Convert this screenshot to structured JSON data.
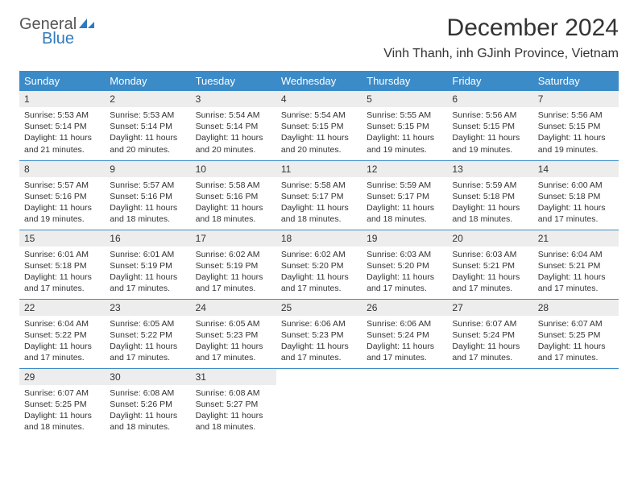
{
  "colors": {
    "header_bg": "#3b8bc8",
    "header_text": "#ffffff",
    "daynum_bg": "#ededed",
    "row_border": "#3b8bc8",
    "logo_gray": "#555555",
    "logo_blue": "#2f7bbf",
    "body_text": "#333333",
    "page_bg": "#ffffff"
  },
  "typography": {
    "title_fontsize": 30,
    "location_fontsize": 16,
    "weekday_fontsize": 13,
    "daynum_fontsize": 12,
    "cell_fontsize": 10.5
  },
  "logo": {
    "top": "General",
    "bottom": "Blue"
  },
  "title": "December 2024",
  "location": "Vinh Thanh, inh GJinh Province, Vietnam",
  "weekdays": [
    "Sunday",
    "Monday",
    "Tuesday",
    "Wednesday",
    "Thursday",
    "Friday",
    "Saturday"
  ],
  "weeks": [
    [
      {
        "num": "1",
        "sunrise": "Sunrise: 5:53 AM",
        "sunset": "Sunset: 5:14 PM",
        "day1": "Daylight: 11 hours",
        "day2": "and 21 minutes."
      },
      {
        "num": "2",
        "sunrise": "Sunrise: 5:53 AM",
        "sunset": "Sunset: 5:14 PM",
        "day1": "Daylight: 11 hours",
        "day2": "and 20 minutes."
      },
      {
        "num": "3",
        "sunrise": "Sunrise: 5:54 AM",
        "sunset": "Sunset: 5:14 PM",
        "day1": "Daylight: 11 hours",
        "day2": "and 20 minutes."
      },
      {
        "num": "4",
        "sunrise": "Sunrise: 5:54 AM",
        "sunset": "Sunset: 5:15 PM",
        "day1": "Daylight: 11 hours",
        "day2": "and 20 minutes."
      },
      {
        "num": "5",
        "sunrise": "Sunrise: 5:55 AM",
        "sunset": "Sunset: 5:15 PM",
        "day1": "Daylight: 11 hours",
        "day2": "and 19 minutes."
      },
      {
        "num": "6",
        "sunrise": "Sunrise: 5:56 AM",
        "sunset": "Sunset: 5:15 PM",
        "day1": "Daylight: 11 hours",
        "day2": "and 19 minutes."
      },
      {
        "num": "7",
        "sunrise": "Sunrise: 5:56 AM",
        "sunset": "Sunset: 5:15 PM",
        "day1": "Daylight: 11 hours",
        "day2": "and 19 minutes."
      }
    ],
    [
      {
        "num": "8",
        "sunrise": "Sunrise: 5:57 AM",
        "sunset": "Sunset: 5:16 PM",
        "day1": "Daylight: 11 hours",
        "day2": "and 19 minutes."
      },
      {
        "num": "9",
        "sunrise": "Sunrise: 5:57 AM",
        "sunset": "Sunset: 5:16 PM",
        "day1": "Daylight: 11 hours",
        "day2": "and 18 minutes."
      },
      {
        "num": "10",
        "sunrise": "Sunrise: 5:58 AM",
        "sunset": "Sunset: 5:16 PM",
        "day1": "Daylight: 11 hours",
        "day2": "and 18 minutes."
      },
      {
        "num": "11",
        "sunrise": "Sunrise: 5:58 AM",
        "sunset": "Sunset: 5:17 PM",
        "day1": "Daylight: 11 hours",
        "day2": "and 18 minutes."
      },
      {
        "num": "12",
        "sunrise": "Sunrise: 5:59 AM",
        "sunset": "Sunset: 5:17 PM",
        "day1": "Daylight: 11 hours",
        "day2": "and 18 minutes."
      },
      {
        "num": "13",
        "sunrise": "Sunrise: 5:59 AM",
        "sunset": "Sunset: 5:18 PM",
        "day1": "Daylight: 11 hours",
        "day2": "and 18 minutes."
      },
      {
        "num": "14",
        "sunrise": "Sunrise: 6:00 AM",
        "sunset": "Sunset: 5:18 PM",
        "day1": "Daylight: 11 hours",
        "day2": "and 17 minutes."
      }
    ],
    [
      {
        "num": "15",
        "sunrise": "Sunrise: 6:01 AM",
        "sunset": "Sunset: 5:18 PM",
        "day1": "Daylight: 11 hours",
        "day2": "and 17 minutes."
      },
      {
        "num": "16",
        "sunrise": "Sunrise: 6:01 AM",
        "sunset": "Sunset: 5:19 PM",
        "day1": "Daylight: 11 hours",
        "day2": "and 17 minutes."
      },
      {
        "num": "17",
        "sunrise": "Sunrise: 6:02 AM",
        "sunset": "Sunset: 5:19 PM",
        "day1": "Daylight: 11 hours",
        "day2": "and 17 minutes."
      },
      {
        "num": "18",
        "sunrise": "Sunrise: 6:02 AM",
        "sunset": "Sunset: 5:20 PM",
        "day1": "Daylight: 11 hours",
        "day2": "and 17 minutes."
      },
      {
        "num": "19",
        "sunrise": "Sunrise: 6:03 AM",
        "sunset": "Sunset: 5:20 PM",
        "day1": "Daylight: 11 hours",
        "day2": "and 17 minutes."
      },
      {
        "num": "20",
        "sunrise": "Sunrise: 6:03 AM",
        "sunset": "Sunset: 5:21 PM",
        "day1": "Daylight: 11 hours",
        "day2": "and 17 minutes."
      },
      {
        "num": "21",
        "sunrise": "Sunrise: 6:04 AM",
        "sunset": "Sunset: 5:21 PM",
        "day1": "Daylight: 11 hours",
        "day2": "and 17 minutes."
      }
    ],
    [
      {
        "num": "22",
        "sunrise": "Sunrise: 6:04 AM",
        "sunset": "Sunset: 5:22 PM",
        "day1": "Daylight: 11 hours",
        "day2": "and 17 minutes."
      },
      {
        "num": "23",
        "sunrise": "Sunrise: 6:05 AM",
        "sunset": "Sunset: 5:22 PM",
        "day1": "Daylight: 11 hours",
        "day2": "and 17 minutes."
      },
      {
        "num": "24",
        "sunrise": "Sunrise: 6:05 AM",
        "sunset": "Sunset: 5:23 PM",
        "day1": "Daylight: 11 hours",
        "day2": "and 17 minutes."
      },
      {
        "num": "25",
        "sunrise": "Sunrise: 6:06 AM",
        "sunset": "Sunset: 5:23 PM",
        "day1": "Daylight: 11 hours",
        "day2": "and 17 minutes."
      },
      {
        "num": "26",
        "sunrise": "Sunrise: 6:06 AM",
        "sunset": "Sunset: 5:24 PM",
        "day1": "Daylight: 11 hours",
        "day2": "and 17 minutes."
      },
      {
        "num": "27",
        "sunrise": "Sunrise: 6:07 AM",
        "sunset": "Sunset: 5:24 PM",
        "day1": "Daylight: 11 hours",
        "day2": "and 17 minutes."
      },
      {
        "num": "28",
        "sunrise": "Sunrise: 6:07 AM",
        "sunset": "Sunset: 5:25 PM",
        "day1": "Daylight: 11 hours",
        "day2": "and 17 minutes."
      }
    ],
    [
      {
        "num": "29",
        "sunrise": "Sunrise: 6:07 AM",
        "sunset": "Sunset: 5:25 PM",
        "day1": "Daylight: 11 hours",
        "day2": "and 18 minutes."
      },
      {
        "num": "30",
        "sunrise": "Sunrise: 6:08 AM",
        "sunset": "Sunset: 5:26 PM",
        "day1": "Daylight: 11 hours",
        "day2": "and 18 minutes."
      },
      {
        "num": "31",
        "sunrise": "Sunrise: 6:08 AM",
        "sunset": "Sunset: 5:27 PM",
        "day1": "Daylight: 11 hours",
        "day2": "and 18 minutes."
      },
      null,
      null,
      null,
      null
    ]
  ]
}
